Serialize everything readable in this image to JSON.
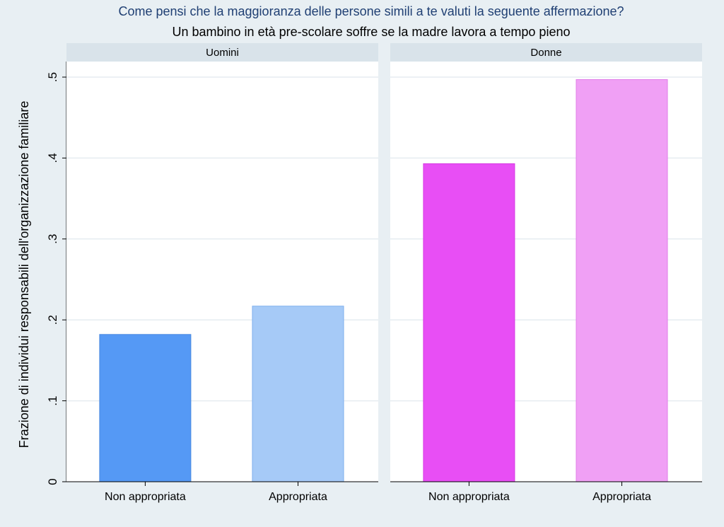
{
  "chart_data": {
    "type": "bar",
    "title": "Come pensi che la maggioranza delle persone simili a te valuti la seguente affermazione?",
    "subtitle": "Un bambino in età pre-scolare soffre se la madre lavora a tempo pieno",
    "ylabel": "Frazione di individui responsabili dell'organizzazione familiare",
    "ylim": [
      0,
      0.5
    ],
    "yticks": [
      {
        "value": 0,
        "label": "0"
      },
      {
        "value": 0.1,
        "label": ".1"
      },
      {
        "value": 0.2,
        "label": ".2"
      },
      {
        "value": 0.3,
        "label": ".3"
      },
      {
        "value": 0.4,
        "label": ".4"
      },
      {
        "value": 0.5,
        "label": ".5"
      }
    ],
    "grid": true,
    "categories": [
      "Non appropriata",
      "Appropriata"
    ],
    "panels": [
      {
        "name": "Uomini",
        "values": [
          0.182,
          0.217
        ],
        "colors": [
          "#5599f5",
          "#a6caf7"
        ],
        "strokes": [
          "#4a89e0",
          "#7fb0ee"
        ]
      },
      {
        "name": "Donne",
        "values": [
          0.393,
          0.497
        ],
        "colors": [
          "#e84ef5",
          "#f0a0f5"
        ],
        "strokes": [
          "#d63ae3",
          "#e07ee8"
        ]
      }
    ]
  },
  "colors": {
    "background": "#e8eff3",
    "plot_area": "#ffffff",
    "panel_header": "#d9e3ea",
    "gridline": "#e6ecf0",
    "title": "#1f3f73"
  }
}
